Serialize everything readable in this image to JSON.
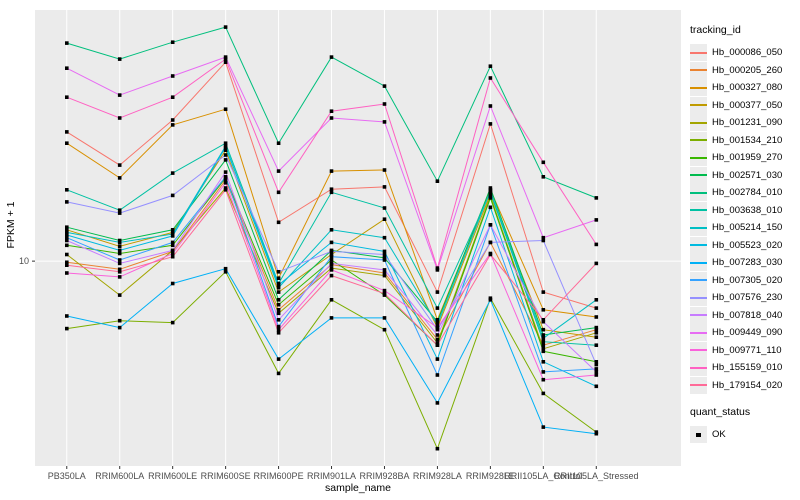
{
  "chart_data": {
    "type": "line",
    "title": "",
    "xlabel": "sample_name",
    "ylabel": "FPKM + 1",
    "y_scale": "log10",
    "ylim": [
      1.63,
      92.4
    ],
    "y_ticks": [
      10
    ],
    "grid": "major-only",
    "legend_position": "right",
    "legend_title": "tracking_id",
    "quant_status": {
      "title": "quant_status",
      "items": [
        "OK"
      ]
    },
    "colors": {
      "panel_bg": "#ebebeb",
      "grid": "#ffffff",
      "point": "#000000",
      "tick": "#333333",
      "tick_text": "#4d4d4d"
    },
    "categories": [
      "PB350LA",
      "RRIM600LA",
      "RRIM600LE",
      "RRIM600SE",
      "RRIM600PE",
      "RRIM901LA",
      "RRIM928BA",
      "RRIM928LA",
      "RRIM928LE",
      "RRII105LA_Control",
      "RRII105LA_Stressed"
    ],
    "series": [
      {
        "name": "Hb_000086_050",
        "color": "#F8766D",
        "values": [
          31.4,
          23.4,
          34.9,
          58.2,
          14.1,
          18.9,
          19.3,
          7.6,
          33.7,
          7.6,
          6.6
        ]
      },
      {
        "name": "Hb_000205_260",
        "color": "#EA8331",
        "values": [
          9.9,
          9.3,
          10.9,
          20.5,
          6.5,
          9.7,
          9.0,
          5.0,
          11.8,
          4.75,
          5.45
        ]
      },
      {
        "name": "Hb_000327_080",
        "color": "#D89000",
        "values": [
          28.4,
          20.9,
          33.4,
          38.4,
          8.6,
          22.2,
          22.4,
          5.95,
          18.8,
          6.5,
          6.1
        ]
      },
      {
        "name": "Hb_000377_050",
        "color": "#C09B00",
        "values": [
          13.2,
          11.4,
          12.9,
          26.7,
          7.6,
          10.6,
          14.5,
          5.55,
          18.1,
          5.45,
          5.1
        ]
      },
      {
        "name": "Hb_001231_090",
        "color": "#A3A500",
        "values": [
          10.6,
          7.4,
          11.0,
          19.1,
          6.3,
          9.4,
          8.8,
          4.85,
          17.8,
          4.6,
          5.3
        ]
      },
      {
        "name": "Hb_001534_210",
        "color": "#7CAE00",
        "values": [
          5.5,
          5.9,
          5.8,
          9.1,
          3.7,
          7.1,
          5.45,
          1.9,
          7.2,
          3.1,
          2.2
        ]
      },
      {
        "name": "Hb_001959_270",
        "color": "#39B600",
        "values": [
          11.5,
          10.7,
          11.5,
          20.9,
          6.8,
          10.1,
          7.4,
          4.75,
          17.5,
          4.5,
          4.1
        ]
      },
      {
        "name": "Hb_002571_030",
        "color": "#00BB4E",
        "values": [
          13.5,
          12.0,
          13.2,
          24.5,
          7.1,
          11.0,
          10.3,
          5.85,
          19.1,
          5.2,
          5.55
        ]
      },
      {
        "name": "Hb_002784_010",
        "color": "#00BF7D",
        "values": [
          68.9,
          59.8,
          69.5,
          79.4,
          28.4,
          60.9,
          47.1,
          20.3,
          56.2,
          21.1,
          17.5
        ]
      },
      {
        "name": "Hb_003638_010",
        "color": "#00C1A3",
        "values": [
          18.8,
          15.7,
          21.8,
          28.4,
          8.2,
          18.4,
          16.0,
          6.6,
          18.4,
          4.9,
          4.75
        ]
      },
      {
        "name": "Hb_005214_150",
        "color": "#00BFC4",
        "values": [
          12.9,
          11.8,
          12.7,
          27.7,
          7.9,
          13.2,
          12.3,
          5.7,
          18.6,
          5.05,
          7.1
        ]
      },
      {
        "name": "Hb_005523_020",
        "color": "#00BAE0",
        "values": [
          12.6,
          11.0,
          12.5,
          27.4,
          8.1,
          11.8,
          10.9,
          4.2,
          16.1,
          4.1,
          3.3
        ]
      },
      {
        "name": "Hb_007283_030",
        "color": "#00B0F6",
        "values": [
          6.15,
          5.55,
          8.2,
          9.35,
          4.2,
          6.05,
          6.05,
          2.85,
          7.1,
          2.3,
          2.17
        ]
      },
      {
        "name": "Hb_007305_020",
        "color": "#35A2FF",
        "values": [
          12.3,
          10.1,
          11.8,
          21.1,
          5.6,
          10.4,
          10.1,
          3.65,
          13.8,
          3.75,
          3.85
        ]
      },
      {
        "name": "Hb_007576_230",
        "color": "#9590FF",
        "values": [
          16.9,
          15.3,
          17.9,
          25.6,
          9.1,
          10.9,
          10.6,
          5.45,
          11.8,
          12.0,
          4.0
        ]
      },
      {
        "name": "Hb_007818_040",
        "color": "#C77CFF",
        "values": [
          12.0,
          9.8,
          11.0,
          22.0,
          5.95,
          9.8,
          9.25,
          5.2,
          13.8,
          5.85,
          3.75
        ]
      },
      {
        "name": "Hb_009449_090",
        "color": "#E76BF3",
        "values": [
          55.2,
          43.5,
          51.5,
          60.9,
          22.2,
          35.5,
          34.3,
          9.25,
          39.5,
          12.3,
          14.4
        ]
      },
      {
        "name": "Hb_009771_110",
        "color": "#FA62DB",
        "values": [
          9.0,
          8.7,
          10.7,
          20.0,
          5.45,
          9.25,
          7.7,
          5.55,
          10.7,
          3.5,
          3.65
        ]
      },
      {
        "name": "Hb_155159_010",
        "color": "#FF61C2",
        "values": [
          42.7,
          35.5,
          42.7,
          59.8,
          18.4,
          37.7,
          40.2,
          9.4,
          50.6,
          24.0,
          11.6
        ]
      },
      {
        "name": "Hb_179154_020",
        "color": "#FF6A98",
        "values": [
          9.65,
          9.1,
          10.4,
          18.8,
          5.3,
          8.8,
          7.5,
          4.75,
          10.6,
          5.95,
          9.8
        ]
      }
    ]
  }
}
